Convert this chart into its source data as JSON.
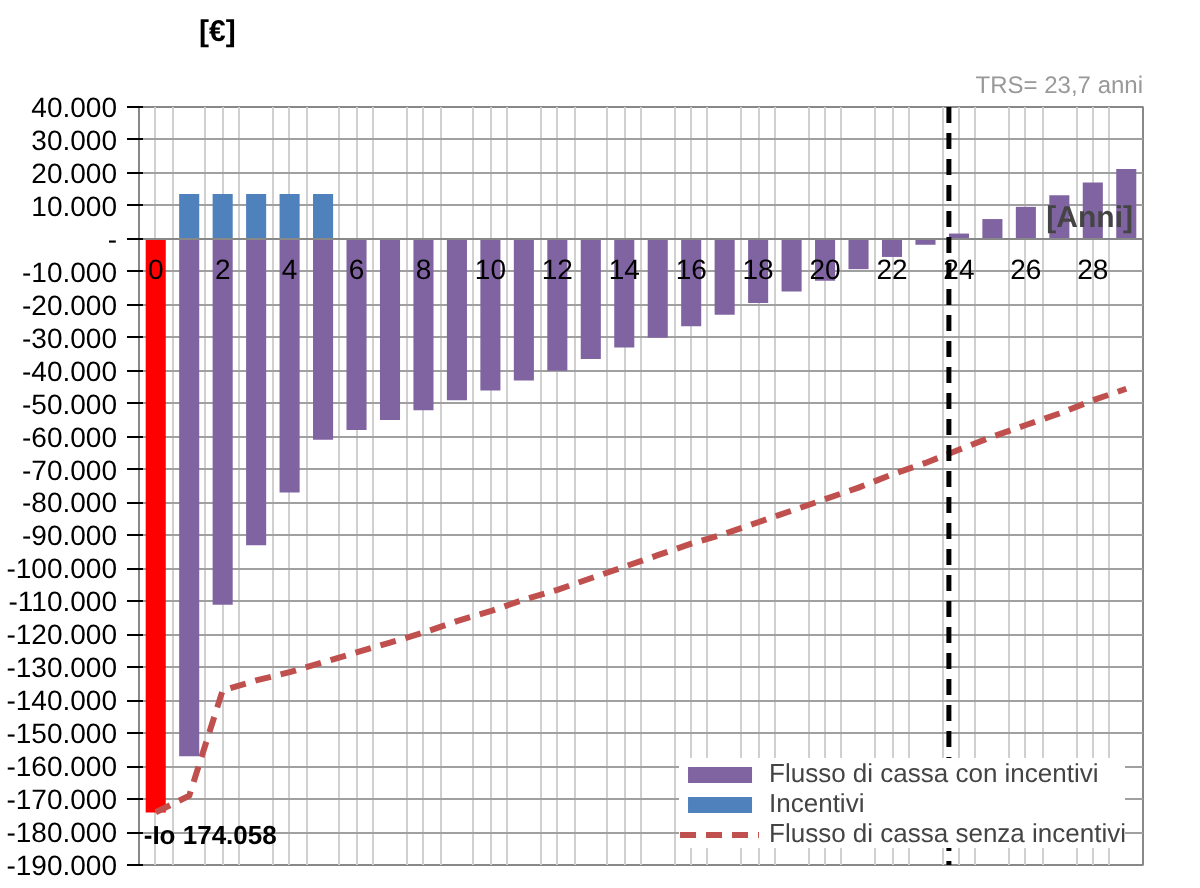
{
  "chart_data": {
    "type": "bar",
    "ylabel": "[€]",
    "xlabel": "[Anni]",
    "x": [
      0,
      1,
      2,
      3,
      4,
      5,
      6,
      7,
      8,
      9,
      10,
      11,
      12,
      13,
      14,
      15,
      16,
      17,
      18,
      19,
      20,
      21,
      22,
      23,
      24,
      25,
      26,
      27,
      28,
      29
    ],
    "xlim": [
      -0.5,
      29.5
    ],
    "xticks": [
      0,
      2,
      4,
      6,
      8,
      10,
      12,
      14,
      16,
      18,
      20,
      22,
      24,
      26,
      28,
      {
        "value": -0.5,
        "label": null
      },
      {
        "value": 0.5,
        "label": null
      },
      {
        "value": 1.5,
        "label": null
      },
      {
        "value": 2.5,
        "label": null
      },
      {
        "value": 3.5,
        "label": null
      },
      {
        "value": 4.5,
        "label": null
      },
      {
        "value": 5.5,
        "label": null
      },
      {
        "value": 6.5,
        "label": null
      },
      {
        "value": 7.5,
        "label": null
      },
      {
        "value": 8.5,
        "label": null
      },
      {
        "value": 9.5,
        "label": null
      },
      {
        "value": 10.5,
        "label": null
      },
      {
        "value": 11.5,
        "label": null
      },
      {
        "value": 12.5,
        "label": null
      },
      {
        "value": 13.5,
        "label": null
      },
      {
        "value": 14.5,
        "label": null
      },
      {
        "value": 15.5,
        "label": null
      },
      {
        "value": 16.5,
        "label": null
      },
      {
        "value": 17.5,
        "label": null
      },
      {
        "value": 18.5,
        "label": null
      },
      {
        "value": 19.5,
        "label": null
      },
      {
        "value": 20.5,
        "label": null
      },
      {
        "value": 21.5,
        "label": null
      },
      {
        "value": 22.5,
        "label": null
      },
      {
        "value": 23.5,
        "label": null
      },
      {
        "value": 24.5,
        "label": null
      },
      {
        "value": 25.5,
        "label": null
      },
      {
        "value": 26.5,
        "label": null
      },
      {
        "value": 27.5,
        "label": null
      },
      {
        "value": 28.5,
        "label": null
      },
      {
        "value": 29.5,
        "label": null
      }
    ],
    "ylim": [
      -190000,
      40000
    ],
    "yticks": [
      {
        "value": 40000,
        "label": "40.000"
      },
      {
        "value": 30000,
        "label": "30.000"
      },
      {
        "value": 20000,
        "label": "20.000"
      },
      {
        "value": 10000,
        "label": "10.000"
      },
      {
        "value": 0,
        "label": "-"
      },
      {
        "value": -10000,
        "label": "-10.000"
      },
      {
        "value": -20000,
        "label": "-20.000"
      },
      {
        "value": -30000,
        "label": "-30.000"
      },
      {
        "value": -40000,
        "label": "-40.000"
      },
      {
        "value": -50000,
        "label": "-50.000"
      },
      {
        "value": -60000,
        "label": "-60.000"
      },
      {
        "value": -70000,
        "label": "-70.000"
      },
      {
        "value": -80000,
        "label": "-80.000"
      },
      {
        "value": -90000,
        "label": "-90.000"
      },
      {
        "value": -100000,
        "label": "-100.000"
      },
      {
        "value": -110000,
        "label": "-110.000"
      },
      {
        "value": -120000,
        "label": "-120.000"
      },
      {
        "value": -130000,
        "label": "-130.000"
      },
      {
        "value": -140000,
        "label": "-140.000"
      },
      {
        "value": -150000,
        "label": "-150.000"
      },
      {
        "value": -160000,
        "label": "-160.000"
      },
      {
        "value": -170000,
        "label": "-170.000"
      },
      {
        "value": -180000,
        "label": "-180.000"
      },
      {
        "value": -190000,
        "label": "-190.000"
      }
    ],
    "series": [
      {
        "name": "Flusso di cassa con incentivi",
        "color": "#8064a2",
        "colors": [
          "#ff0000",
          "#8064a2",
          "#8064a2",
          "#8064a2",
          "#8064a2",
          "#8064a2",
          "#8064a2",
          "#8064a2",
          "#8064a2",
          "#8064a2",
          "#8064a2",
          "#8064a2",
          "#8064a2",
          "#8064a2",
          "#8064a2",
          "#8064a2",
          "#8064a2",
          "#8064a2",
          "#8064a2",
          "#8064a2",
          "#8064a2",
          "#8064a2",
          "#8064a2",
          "#8064a2",
          "#8064a2",
          "#8064a2",
          "#8064a2",
          "#8064a2",
          "#8064a2",
          "#8064a2"
        ],
        "values": [
          -174058,
          -157000,
          -111000,
          -93000,
          -77000,
          -61000,
          -58000,
          -55000,
          -52000,
          -49000,
          -46000,
          -43000,
          -40000,
          -36500,
          -33000,
          -30000,
          -26500,
          -23000,
          -19500,
          -16000,
          -12700,
          -9200,
          -5500,
          -1800,
          1600,
          6000,
          9700,
          13200,
          17100,
          21200
        ]
      },
      {
        "name": "Incentivi",
        "color": "#4f81bd",
        "values": [
          null,
          13600,
          13600,
          13600,
          13600,
          13600,
          null,
          null,
          null,
          null,
          null,
          null,
          null,
          null,
          null,
          null,
          null,
          null,
          null,
          null,
          null,
          null,
          null,
          null,
          null,
          null,
          null,
          null,
          null,
          null
        ]
      },
      {
        "name": "Flusso di cassa senza incentivi",
        "type": "line",
        "color": "#c0504d",
        "line_style": "dashed",
        "values": [
          -174000,
          -169000,
          -137000,
          -134000,
          -131500,
          -128500,
          -125500,
          -122500,
          -119500,
          -116000,
          -113000,
          -109500,
          -106500,
          -103000,
          -99500,
          -96000,
          -92500,
          -89500,
          -86000,
          -82500,
          -79000,
          -75500,
          -71500,
          -68000,
          -64000,
          -60000,
          -56500,
          -53000,
          -49000,
          -45500
        ]
      }
    ],
    "ref_lines": [
      {
        "axis": "x",
        "value": 23.7,
        "label": "TRS= 23,7 anni",
        "color": "#000000",
        "line_style": "dashed"
      }
    ],
    "annotations": [
      {
        "text": "-Io 174.058",
        "x": 0,
        "y": -174058
      }
    ],
    "grid": true,
    "legend": "bottom right"
  }
}
